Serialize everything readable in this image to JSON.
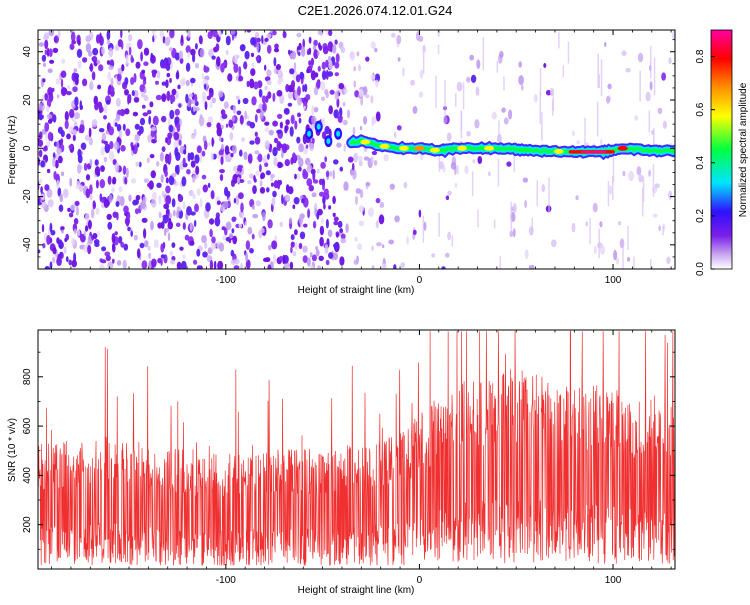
{
  "title": "C2E1.2026.074.12.01.G24",
  "chart_data": [
    {
      "type": "heatmap",
      "xlabel": "Height of straight line (km)",
      "ylabel": "Frequency (Hz)",
      "xlim": [
        -197,
        132
      ],
      "ylim": [
        -50,
        49
      ],
      "x_ticks": [
        -100,
        0,
        100
      ],
      "y_ticks": [
        -40,
        -20,
        0,
        20,
        40
      ],
      "tick_labels_x": [
        "-100",
        "0",
        "100"
      ],
      "tick_labels_y": [
        "-40",
        "-20",
        "0",
        "20",
        "40"
      ],
      "colorbar": {
        "label": "Normalized spectral amplitude",
        "range": [
          0,
          0.9
        ],
        "ticks": [
          0.0,
          0.2,
          0.4,
          0.6,
          0.8
        ],
        "tick_labels": [
          "0.0",
          "0.2",
          "0.4",
          "0.6",
          "0.8"
        ],
        "colormap": [
          "#ffffff",
          "#c9a8f0",
          "#7a1ee8",
          "#3010ff",
          "#00e5ff",
          "#00ff40",
          "#ffff00",
          "#ff9000",
          "#ff0000",
          "#ff00a0"
        ]
      },
      "signal_track": [
        {
          "x": -60,
          "y": 4,
          "amp": 0.3
        },
        {
          "x": -50,
          "y": 6,
          "amp": 0.35
        },
        {
          "x": -40,
          "y": 2,
          "amp": 0.35
        },
        {
          "x": -30,
          "y": 3,
          "amp": 0.4
        },
        {
          "x": -20,
          "y": 1,
          "amp": 0.5
        },
        {
          "x": -10,
          "y": 0,
          "amp": 0.55
        },
        {
          "x": 0,
          "y": 0,
          "amp": 0.6
        },
        {
          "x": 10,
          "y": -1,
          "amp": 0.6
        },
        {
          "x": 20,
          "y": 0,
          "amp": 0.6
        },
        {
          "x": 40,
          "y": 0,
          "amp": 0.55
        },
        {
          "x": 60,
          "y": -1,
          "amp": 0.55
        },
        {
          "x": 80,
          "y": -1.5,
          "amp": 0.8
        },
        {
          "x": 95,
          "y": -1.5,
          "amp": 0.9
        },
        {
          "x": 105,
          "y": 0,
          "amp": 0.7
        },
        {
          "x": 120,
          "y": -1,
          "amp": 0.5
        },
        {
          "x": 132,
          "y": -1,
          "amp": 0.5
        }
      ]
    },
    {
      "type": "line",
      "xlabel": "Height of straight line (km)",
      "ylabel": "SNR (10 * v/v)",
      "xlim": [
        -197,
        132
      ],
      "ylim": [
        20,
        990
      ],
      "x_ticks": [
        -100,
        0,
        100
      ],
      "y_ticks": [
        200,
        400,
        600,
        800
      ],
      "tick_labels_x": [
        "-100",
        "0",
        "100"
      ],
      "tick_labels_y": [
        "200",
        "400",
        "600",
        "800"
      ],
      "color": "#f03030",
      "series": [
        {
          "x": [
            -190,
            -170,
            -150,
            -130,
            -110,
            -90,
            -70,
            -50,
            -30,
            -10,
            10,
            30,
            50,
            70,
            90,
            110,
            130
          ],
          "values": [
            280,
            300,
            290,
            270,
            260,
            260,
            270,
            270,
            280,
            300,
            380,
            430,
            440,
            420,
            410,
            390,
            380
          ]
        }
      ]
    }
  ]
}
